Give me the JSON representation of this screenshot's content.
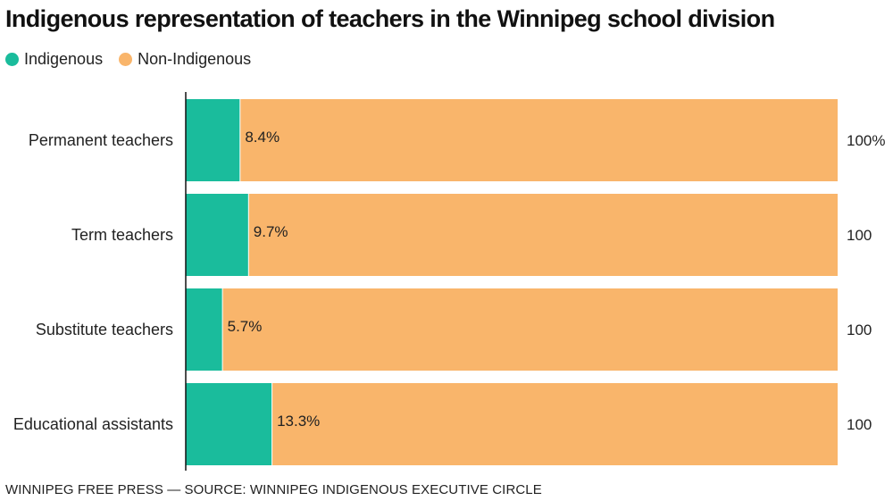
{
  "title": "Indigenous representation of teachers in the Winnipeg school division",
  "legend": {
    "indigenous": {
      "label": "Indigenous",
      "color": "#1abc9c"
    },
    "non_indigenous": {
      "label": "Non-Indigenous",
      "color": "#f9b56b"
    }
  },
  "footer": "WINNIPEG FREE PRESS — SOURCE: WINNIPEG INDIGENOUS EXECUTIVE CIRCLE",
  "chart_data": {
    "type": "bar",
    "orientation": "horizontal",
    "stacked": true,
    "title": "Indigenous representation of teachers in the Winnipeg school division",
    "categories": [
      "Permanent teachers",
      "Term teachers",
      "Substitute teachers",
      "Educational assistants"
    ],
    "series": [
      {
        "name": "Indigenous",
        "values": [
          8.4,
          9.7,
          5.7,
          13.3
        ],
        "color": "#1abc9c"
      },
      {
        "name": "Non-Indigenous",
        "values": [
          91.6,
          90.3,
          94.3,
          86.7
        ],
        "color": "#f9b56b"
      }
    ],
    "data_labels": [
      "8.4%",
      "9.7%",
      "5.7%",
      "13.3%"
    ],
    "total_labels": [
      "100%",
      "100",
      "100",
      "100"
    ],
    "xlim": [
      0,
      100
    ],
    "grid": false,
    "legend_position": "top-left"
  }
}
